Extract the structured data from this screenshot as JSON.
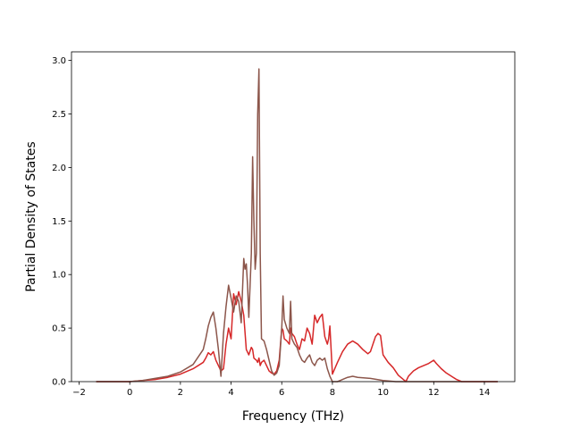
{
  "chart_data": {
    "type": "line",
    "title": "",
    "xlabel": "Frequency (THz)",
    "ylabel": "Partial Density of States",
    "xlim": [
      -2.3,
      15.2
    ],
    "ylim": [
      0.0,
      3.08
    ],
    "xticks": [
      -2,
      0,
      2,
      4,
      6,
      8,
      10,
      12,
      14
    ],
    "xtick_labels": [
      "−2",
      "0",
      "2",
      "4",
      "6",
      "8",
      "10",
      "12",
      "14"
    ],
    "yticks": [
      0.0,
      0.5,
      1.0,
      1.5,
      2.0,
      2.5,
      3.0
    ],
    "ytick_labels": [
      "0.0",
      "0.5",
      "1.0",
      "1.5",
      "2.0",
      "2.5",
      "3.0"
    ],
    "grid": false,
    "legend": "none",
    "series": [
      {
        "color": "#d62728",
        "x": [
          -1.3,
          0.0,
          0.5,
          1.0,
          1.5,
          2.0,
          2.5,
          2.9,
          3.0,
          3.1,
          3.2,
          3.3,
          3.4,
          3.5,
          3.6,
          3.7,
          3.8,
          3.9,
          4.0,
          4.1,
          4.2,
          4.3,
          4.4,
          4.5,
          4.6,
          4.7,
          4.8,
          4.85,
          4.9,
          5.0,
          5.05,
          5.1,
          5.15,
          5.2,
          5.3,
          5.4,
          5.5,
          5.6,
          5.7,
          5.8,
          5.9,
          6.0,
          6.05,
          6.1,
          6.2,
          6.3,
          6.35,
          6.4,
          6.5,
          6.6,
          6.7,
          6.8,
          6.9,
          7.0,
          7.1,
          7.2,
          7.3,
          7.4,
          7.5,
          7.6,
          7.7,
          7.8,
          7.85,
          7.9,
          8.0,
          8.2,
          8.4,
          8.6,
          8.8,
          9.0,
          9.2,
          9.4,
          9.5,
          9.6,
          9.7,
          9.8,
          9.9,
          10.0,
          10.2,
          10.4,
          10.6,
          10.8,
          10.9,
          11.0,
          11.2,
          11.4,
          11.6,
          11.8,
          12.0,
          12.1,
          12.3,
          12.5,
          12.7,
          12.9,
          13.1,
          13.3,
          14.5
        ],
        "y": [
          0.0,
          0.0,
          0.01,
          0.02,
          0.04,
          0.07,
          0.12,
          0.18,
          0.22,
          0.27,
          0.25,
          0.28,
          0.2,
          0.15,
          0.1,
          0.12,
          0.35,
          0.5,
          0.4,
          0.82,
          0.72,
          0.84,
          0.75,
          0.62,
          0.3,
          0.25,
          0.32,
          0.3,
          0.22,
          0.2,
          0.18,
          0.22,
          0.15,
          0.18,
          0.2,
          0.15,
          0.1,
          0.08,
          0.07,
          0.1,
          0.2,
          0.5,
          0.48,
          0.4,
          0.38,
          0.35,
          0.5,
          0.45,
          0.42,
          0.35,
          0.3,
          0.4,
          0.38,
          0.5,
          0.45,
          0.35,
          0.62,
          0.55,
          0.6,
          0.63,
          0.42,
          0.35,
          0.4,
          0.52,
          0.07,
          0.18,
          0.28,
          0.35,
          0.38,
          0.35,
          0.3,
          0.26,
          0.28,
          0.35,
          0.42,
          0.45,
          0.43,
          0.25,
          0.18,
          0.13,
          0.06,
          0.02,
          0.0,
          0.05,
          0.1,
          0.13,
          0.15,
          0.17,
          0.2,
          0.17,
          0.12,
          0.08,
          0.05,
          0.02,
          0.0,
          0.0,
          0.0
        ]
      },
      {
        "color": "#8c564b",
        "x": [
          -1.3,
          0.0,
          0.5,
          1.0,
          1.5,
          2.0,
          2.5,
          2.9,
          3.0,
          3.1,
          3.2,
          3.3,
          3.4,
          3.5,
          3.6,
          3.7,
          3.8,
          3.9,
          4.0,
          4.1,
          4.2,
          4.3,
          4.4,
          4.5,
          4.55,
          4.6,
          4.65,
          4.7,
          4.8,
          4.85,
          4.9,
          4.95,
          5.0,
          5.05,
          5.1,
          5.15,
          5.2,
          5.3,
          5.4,
          5.5,
          5.6,
          5.7,
          5.8,
          5.9,
          6.0,
          6.05,
          6.1,
          6.2,
          6.3,
          6.35,
          6.4,
          6.5,
          6.6,
          6.7,
          6.8,
          6.9,
          7.0,
          7.1,
          7.2,
          7.3,
          7.4,
          7.5,
          7.6,
          7.7,
          7.8,
          7.9,
          8.0,
          8.2,
          8.4,
          8.6,
          8.8,
          9.0,
          9.5,
          10.0,
          10.5,
          11.0,
          14.5
        ],
        "y": [
          0.0,
          0.0,
          0.01,
          0.03,
          0.05,
          0.09,
          0.16,
          0.3,
          0.4,
          0.52,
          0.6,
          0.65,
          0.5,
          0.3,
          0.05,
          0.45,
          0.7,
          0.9,
          0.78,
          0.65,
          0.8,
          0.75,
          0.55,
          1.15,
          1.05,
          1.1,
          0.9,
          0.6,
          1.2,
          2.1,
          1.5,
          1.05,
          1.2,
          2.5,
          2.92,
          1.2,
          0.4,
          0.38,
          0.3,
          0.2,
          0.1,
          0.06,
          0.08,
          0.15,
          0.5,
          0.8,
          0.58,
          0.5,
          0.45,
          0.75,
          0.4,
          0.35,
          0.32,
          0.25,
          0.2,
          0.18,
          0.22,
          0.25,
          0.18,
          0.15,
          0.2,
          0.22,
          0.2,
          0.22,
          0.12,
          0.05,
          0.0,
          0.0,
          0.02,
          0.04,
          0.05,
          0.04,
          0.03,
          0.01,
          0.0,
          0.0,
          0.0
        ]
      }
    ]
  }
}
